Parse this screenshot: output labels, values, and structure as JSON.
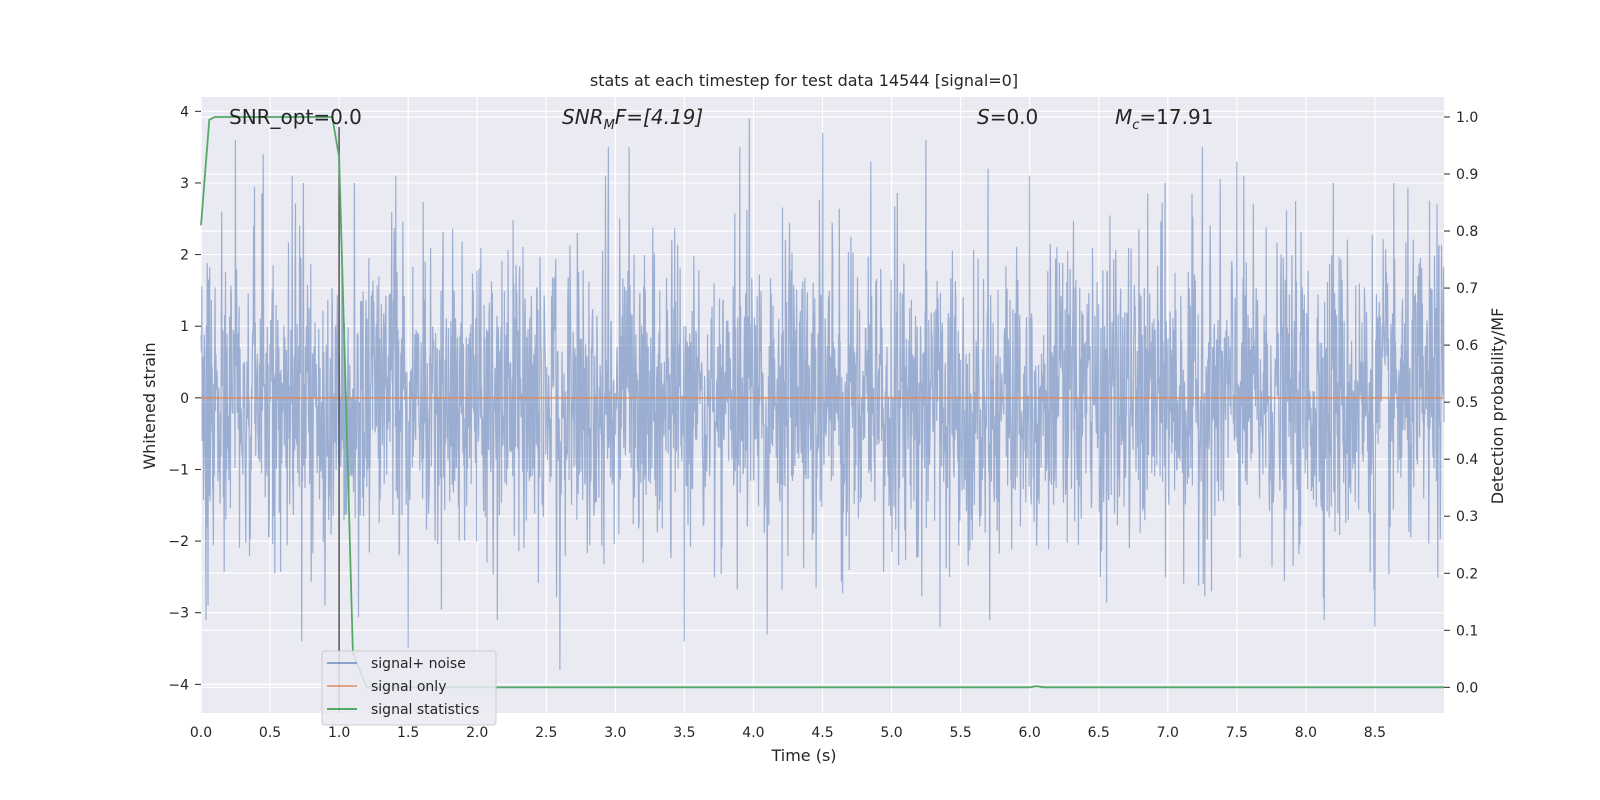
{
  "chart_data": {
    "type": "line",
    "title": "stats at each timestep for test data 14544 [signal=0]",
    "xlabel": "Time (s)",
    "ylabel_left": "Whitened strain",
    "ylabel_right": "Detection probability/MF",
    "xlim": [
      0.0,
      9.0
    ],
    "ylim_left": [
      -4.4,
      4.2
    ],
    "ylim_right": [
      -0.045,
      1.035
    ],
    "grid": true,
    "legend_placement": "lower-left",
    "x_ticks": [
      "0.0",
      "0.5",
      "1.0",
      "1.5",
      "2.0",
      "2.5",
      "3.0",
      "3.5",
      "4.0",
      "4.5",
      "5.0",
      "5.5",
      "6.0",
      "6.5",
      "7.0",
      "7.5",
      "8.0",
      "8.5"
    ],
    "x_tick_values": [
      0.0,
      0.5,
      1.0,
      1.5,
      2.0,
      2.5,
      3.0,
      3.5,
      4.0,
      4.5,
      5.0,
      5.5,
      6.0,
      6.5,
      7.0,
      7.5,
      8.0,
      8.5
    ],
    "y_left_ticks": [
      "−4",
      "−3",
      "−2",
      "−1",
      "0",
      "1",
      "2",
      "3",
      "4"
    ],
    "y_left_tick_values": [
      -4,
      -3,
      -2,
      -1,
      0,
      1,
      2,
      3,
      4
    ],
    "y_right_ticks": [
      "0.0",
      "0.1",
      "0.2",
      "0.3",
      "0.4",
      "0.5",
      "0.6",
      "0.7",
      "0.8",
      "0.9",
      "1.0"
    ],
    "y_right_tick_values": [
      0.0,
      0.1,
      0.2,
      0.3,
      0.4,
      0.5,
      0.6,
      0.7,
      0.8,
      0.9,
      1.0
    ],
    "annotations": {
      "snr_opt": "SNR_opt=0.0",
      "snr_mf_main": "SNR",
      "snr_mf_sub": "M",
      "snr_mf_rest": "F=[4.19]",
      "s_label": "S",
      "s_rest": "=0.0",
      "mc_main": "M",
      "mc_sub": "c",
      "mc_rest": "=17.91"
    },
    "vertical_marker_x": 1.0,
    "series": [
      {
        "name": "signal+ noise",
        "color": "#4c72b0",
        "opacity": 0.5,
        "axis": "left",
        "description_range": [
          -3.8,
          3.9
        ],
        "noise_peaks": [
          {
            "x": 0.05,
            "y": -2.9
          },
          {
            "x": 0.15,
            "y": 2.6
          },
          {
            "x": 0.25,
            "y": 3.6
          },
          {
            "x": 0.38,
            "y": 2.4
          },
          {
            "x": 0.45,
            "y": 3.4
          },
          {
            "x": 0.73,
            "y": -3.4
          },
          {
            "x": 0.74,
            "y": 3.0
          },
          {
            "x": 1.11,
            "y": 3.0
          },
          {
            "x": 1.5,
            "y": -3.5
          },
          {
            "x": 2.6,
            "y": -3.8
          },
          {
            "x": 2.95,
            "y": 3.5
          },
          {
            "x": 3.1,
            "y": 3.5
          },
          {
            "x": 3.5,
            "y": -3.4
          },
          {
            "x": 3.9,
            "y": 3.5
          },
          {
            "x": 3.97,
            "y": 3.9
          },
          {
            "x": 4.1,
            "y": -3.3
          },
          {
            "x": 4.5,
            "y": 3.7
          },
          {
            "x": 4.85,
            "y": 3.3
          },
          {
            "x": 5.25,
            "y": 3.6
          },
          {
            "x": 5.35,
            "y": -3.2
          },
          {
            "x": 5.7,
            "y": 3.2
          },
          {
            "x": 6.0,
            "y": 3.1
          },
          {
            "x": 6.98,
            "y": 3.0
          },
          {
            "x": 7.25,
            "y": 3.5
          },
          {
            "x": 7.5,
            "y": 3.3
          },
          {
            "x": 8.2,
            "y": 3.0
          },
          {
            "x": 8.5,
            "y": -3.2
          },
          {
            "x": 8.95,
            "y": 2.7
          }
        ]
      },
      {
        "name": "signal only",
        "color": "#dd8452",
        "axis": "left",
        "x": [
          0.0,
          9.0
        ],
        "y": [
          0.0,
          0.0
        ]
      },
      {
        "name": "signal statistics",
        "color": "#55a868",
        "axis": "right",
        "x": [
          0.0,
          0.06,
          0.1,
          0.2,
          0.5,
          0.95,
          1.0,
          1.05,
          1.1,
          1.2,
          6.0,
          6.05,
          6.1,
          9.0
        ],
        "y": [
          0.81,
          0.995,
          1.0,
          1.0,
          1.0,
          1.0,
          0.93,
          0.5,
          0.06,
          0.0,
          0.0,
          0.002,
          0.0,
          0.0
        ]
      }
    ]
  },
  "legend": {
    "items": [
      {
        "label": "signal+ noise",
        "color": "#4c72b0"
      },
      {
        "label": "signal only",
        "color": "#dd8452"
      },
      {
        "label": "signal statistics",
        "color": "#55a868"
      }
    ]
  },
  "colors": {
    "axes_bg": "#eaeaf2",
    "grid": "#ffffff",
    "marker_line": "#555555"
  }
}
